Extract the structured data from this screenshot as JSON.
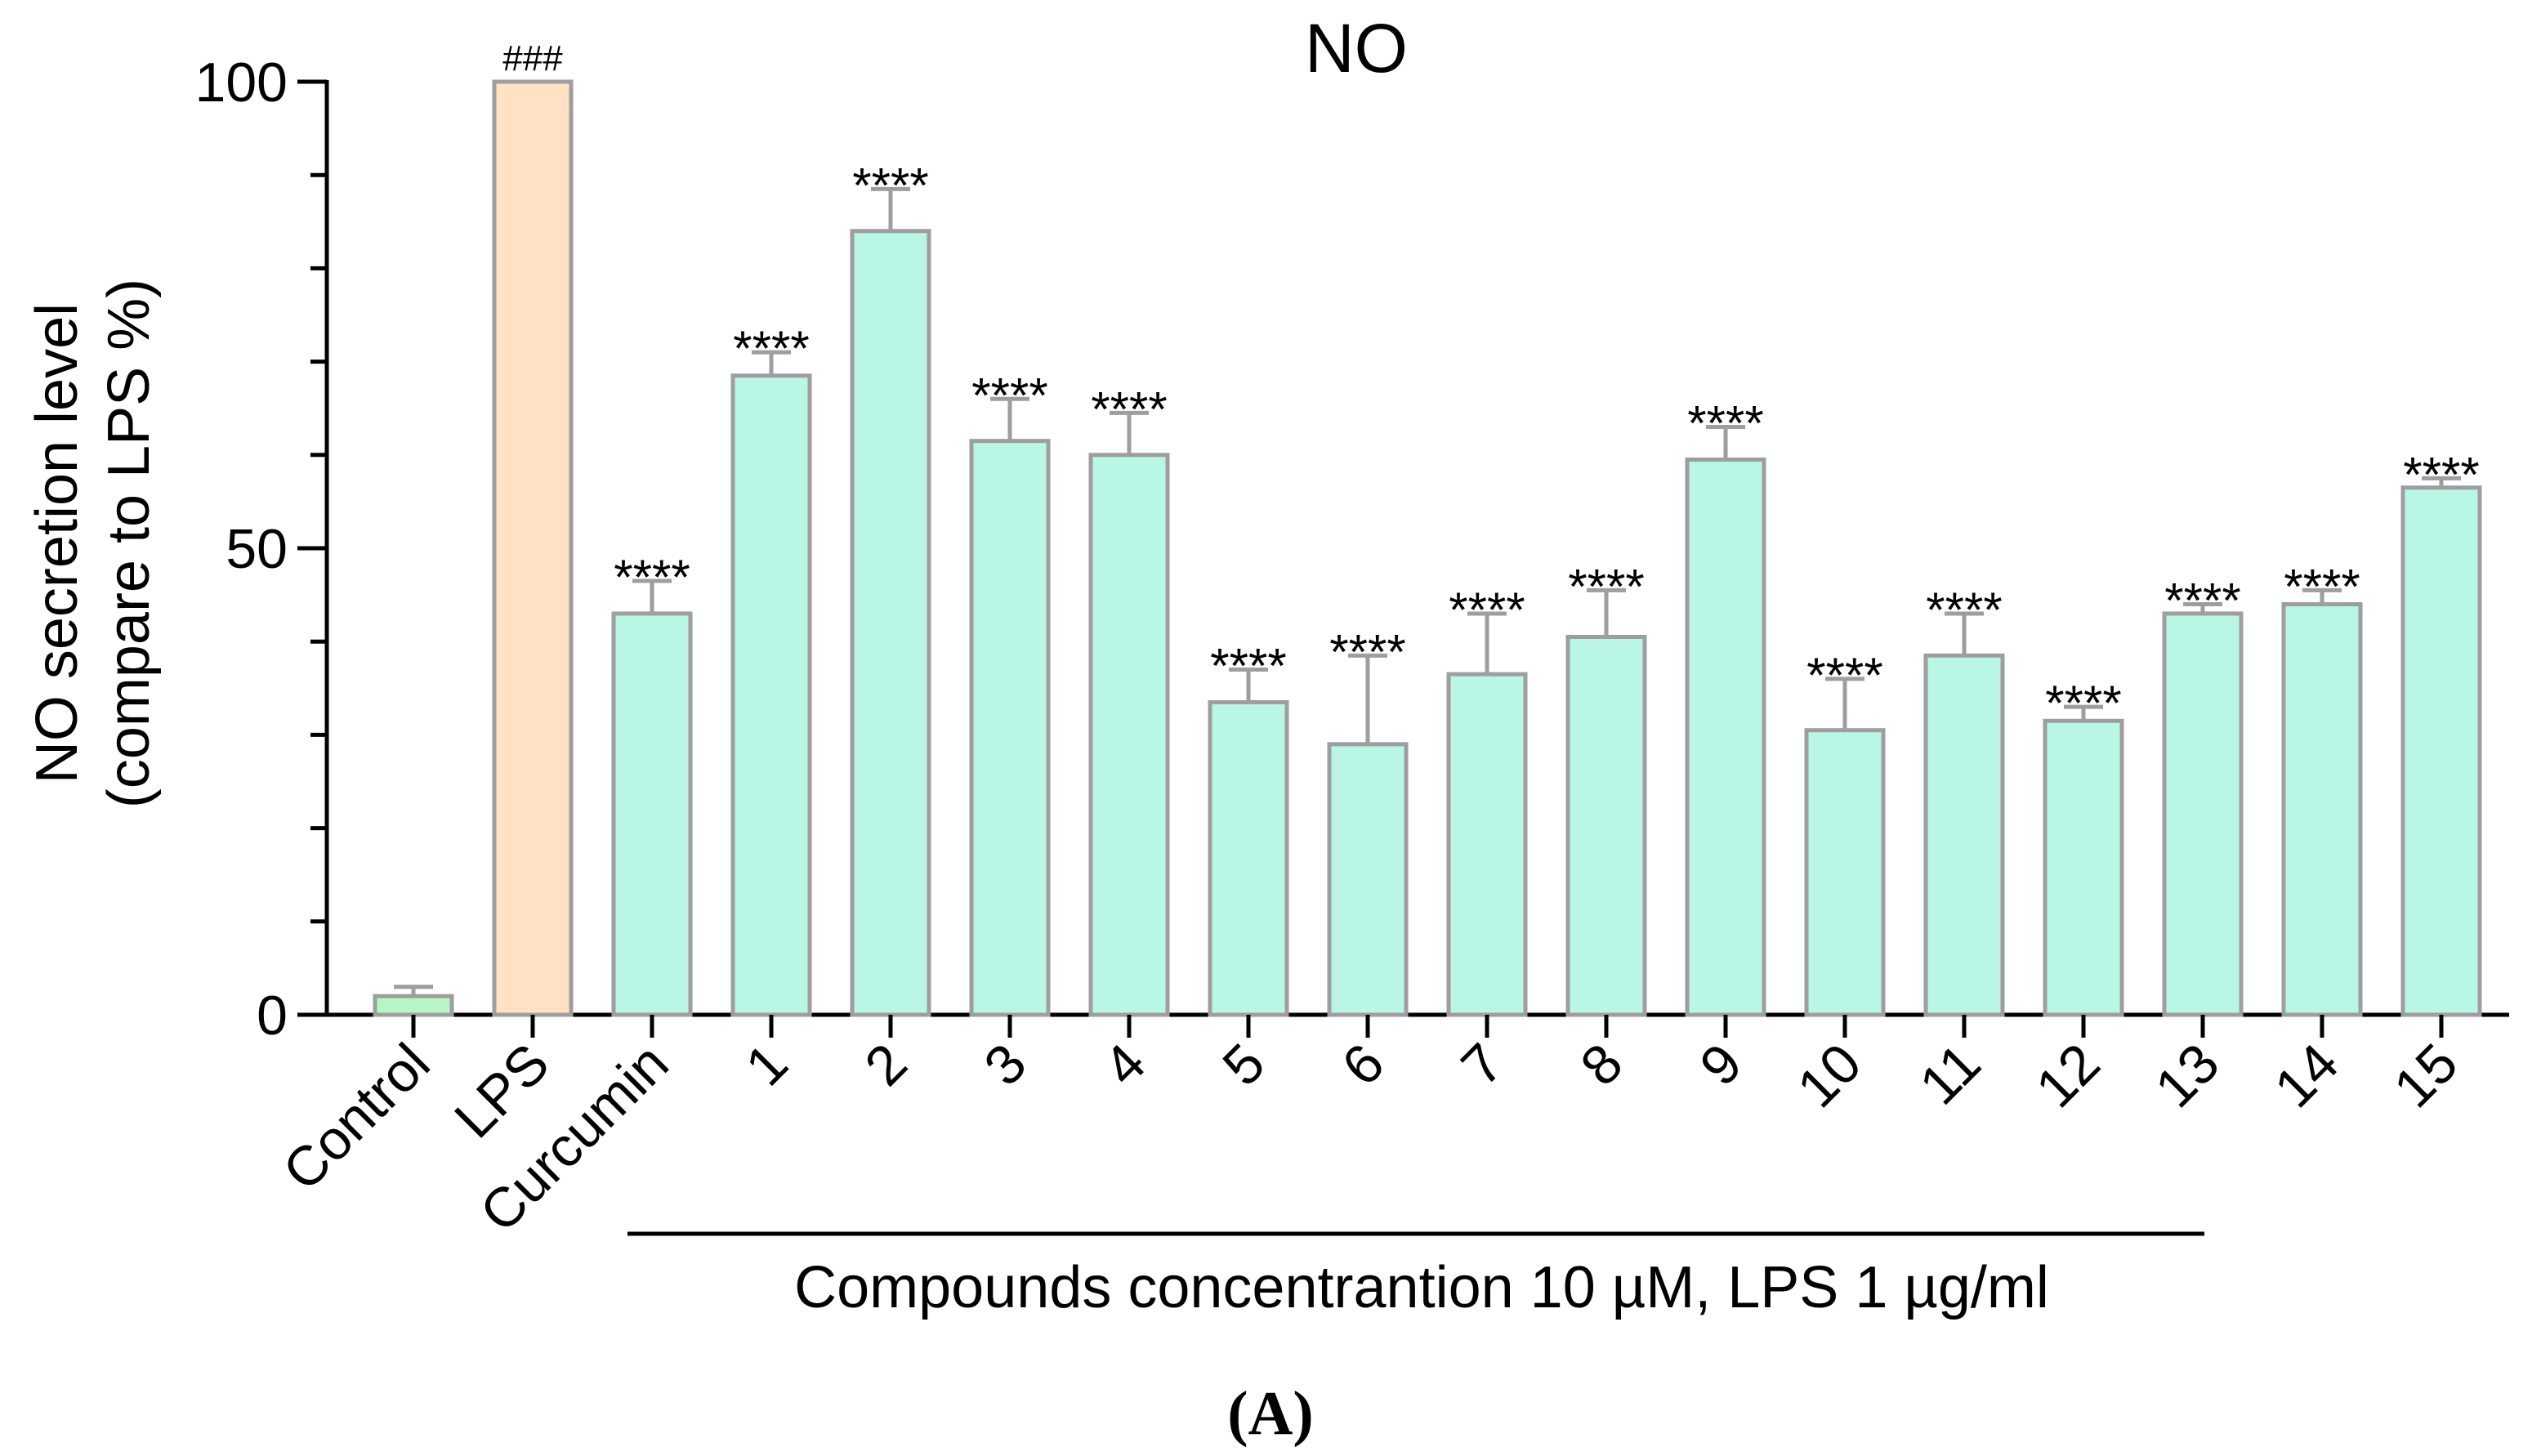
{
  "chart_data": {
    "type": "bar",
    "title": "NO",
    "ylabel_line1": "NO secretion level",
    "ylabel_line2": "(compare to LPS %)",
    "xlabel": "Compounds concentrantion 10 µM, LPS 1 µg/ml",
    "panel_label": "(A)",
    "ylim": [
      0,
      100
    ],
    "yticks": [
      {
        "value": 0,
        "label": "0"
      },
      {
        "value": 50,
        "label": "50"
      },
      {
        "value": 100,
        "label": "100"
      }
    ],
    "ytick_minor_step": 10,
    "categories": [
      "Control",
      "LPS",
      "Curcumin",
      "1",
      "2",
      "3",
      "4",
      "5",
      "6",
      "7",
      "8",
      "9",
      "10",
      "11",
      "12",
      "13",
      "14",
      "15"
    ],
    "values": [
      2,
      100,
      43,
      68.5,
      84,
      61.5,
      60,
      33.5,
      29,
      36.5,
      40.5,
      59.5,
      30.5,
      38.5,
      31.5,
      43,
      44,
      56.5
    ],
    "errors": [
      1,
      0,
      3.5,
      2.5,
      4.5,
      4.5,
      4.5,
      3.5,
      9.5,
      6.5,
      5,
      3.5,
      5.5,
      4.5,
      1.5,
      1,
      1.5,
      1
    ],
    "significance": [
      "",
      "###",
      "****",
      "****",
      "****",
      "****",
      "****",
      "****",
      "****",
      "****",
      "****",
      "****",
      "****",
      "****",
      "****",
      "****",
      "****",
      "****"
    ],
    "bar_colors": [
      "#b7f5c6",
      "#ffe2c3",
      "#b9f6e6",
      "#b9f6e6",
      "#b9f6e6",
      "#b9f6e6",
      "#b9f6e6",
      "#b9f6e6",
      "#b9f6e6",
      "#b9f6e6",
      "#b9f6e6",
      "#b9f6e6",
      "#b9f6e6",
      "#b9f6e6",
      "#b9f6e6",
      "#b9f6e6",
      "#b9f6e6",
      "#b9f6e6"
    ],
    "group_bar": {
      "from_category": "Curcumin",
      "to_category": "13"
    }
  }
}
